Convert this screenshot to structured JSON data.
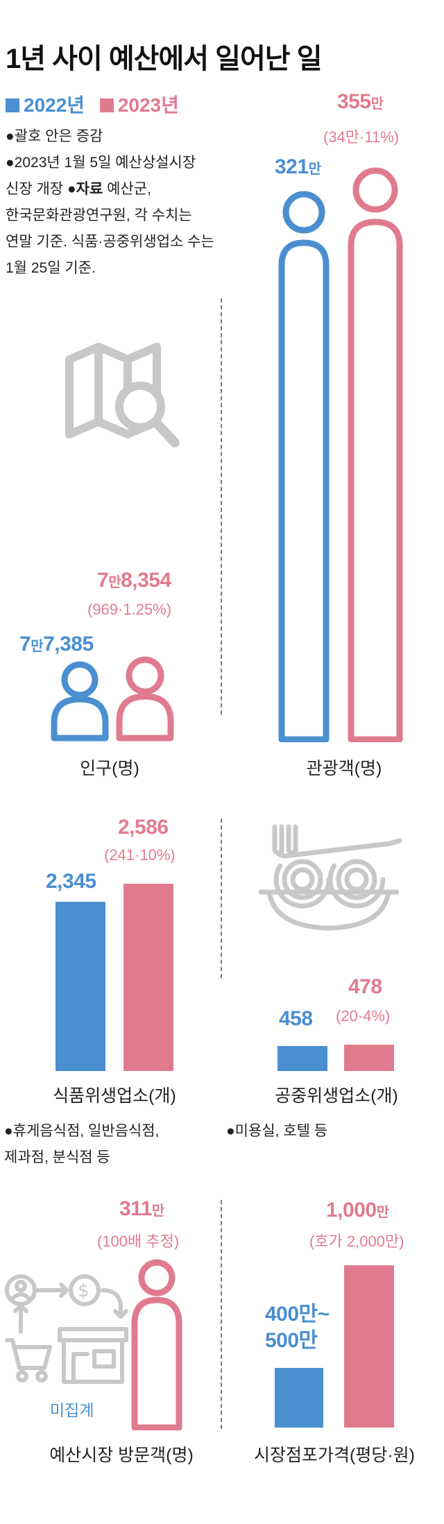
{
  "title": "1년 사이 예산에서 일어난 일",
  "legend": {
    "y2022": "2022년",
    "y2023": "2023년"
  },
  "colors": {
    "y2022": "#4a8fd0",
    "y2023": "#e07b8e",
    "icon_gray": "#c8c8c8"
  },
  "notes": {
    "n1": "●괄호 안은 증감",
    "n2": "●2023년 1월 5일 예산상설시장",
    "n3a": "신장 개장 ",
    "n3b": "●자료",
    "n3c": " 예산군,",
    "n4": "한국문화관광연구원, 각 수치는",
    "n5": "연말 기준. 식품·공중위생업소 수는",
    "n6": "1월 25일 기준."
  },
  "icons": [
    "map-search-icon",
    "person-icon",
    "spaghetti-fork-icon",
    "shop-exchange-icon"
  ],
  "chart_data": [
    {
      "type": "bar",
      "label": "인구(명)",
      "series": [
        {
          "name": "2022년",
          "value": 77385,
          "display_big": "7",
          "display_unit": "만",
          "display_rest": "7,385"
        },
        {
          "name": "2023년",
          "value": 78354,
          "display_big": "7",
          "display_unit": "만",
          "display_rest": "8,354"
        }
      ],
      "change": "(969·1.25%)"
    },
    {
      "type": "bar",
      "label": "관광객(명)",
      "series": [
        {
          "name": "2022년",
          "value": 3210000,
          "display_big": "321",
          "display_unit": "만"
        },
        {
          "name": "2023년",
          "value": 3550000,
          "display_big": "355",
          "display_unit": "만"
        }
      ],
      "change": "(34만·11%)"
    },
    {
      "type": "bar",
      "label": "식품위생업소(개)",
      "series": [
        {
          "name": "2022년",
          "value": 2345,
          "display": "2,345"
        },
        {
          "name": "2023년",
          "value": 2586,
          "display": "2,586"
        }
      ],
      "change": "(241·10%)",
      "note": "●휴게음식점, 일반음식점,",
      "note2": "제과점, 분식점 등"
    },
    {
      "type": "bar",
      "label": "공중위생업소(개)",
      "series": [
        {
          "name": "2022년",
          "value": 458,
          "display": "458"
        },
        {
          "name": "2023년",
          "value": 478,
          "display": "478"
        }
      ],
      "change": "(20·4%)",
      "note": "●미용실, 호텔 등"
    },
    {
      "type": "bar",
      "label": "예산시장 방문객(명)",
      "series": [
        {
          "name": "2022년",
          "value": null,
          "display": "미집계"
        },
        {
          "name": "2023년",
          "value": 3110000,
          "display_big": "311",
          "display_unit": "만"
        }
      ],
      "change": "(100배 추정)"
    },
    {
      "type": "bar",
      "label": "시장점포가격(평당·원)",
      "series": [
        {
          "name": "2022년",
          "value": 4500000,
          "display_line1": "400만~",
          "display_line2": "500만"
        },
        {
          "name": "2023년",
          "value": 10000000,
          "display_big": "1,000",
          "display_unit": "만"
        }
      ],
      "change": "(호가 2,000만)"
    }
  ]
}
